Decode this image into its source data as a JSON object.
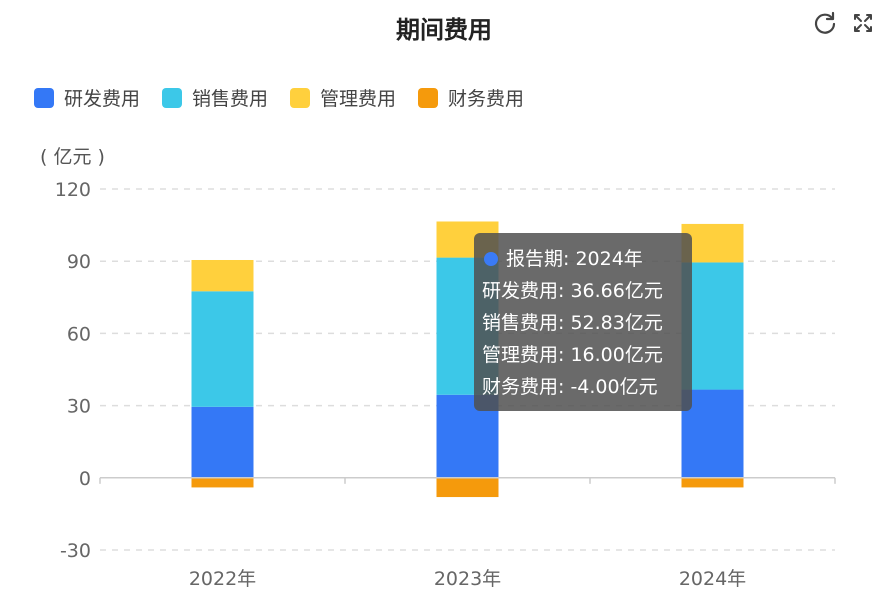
{
  "chart_data": {
    "type": "bar",
    "stacked": true,
    "title": "期间费用",
    "unit_label": "( 亿元 )",
    "categories": [
      "2022年",
      "2023年",
      "2024年"
    ],
    "yticks": [
      "120",
      "90",
      "60",
      "30",
      "0",
      "-30"
    ],
    "ylim": [
      -30,
      120
    ],
    "grid": true,
    "legend_position": "top-left",
    "series": [
      {
        "name": "研发费用",
        "color": "#3478f6",
        "values": [
          29.5,
          34.5,
          36.66
        ]
      },
      {
        "name": "销售费用",
        "color": "#3cc8e8",
        "values": [
          48.0,
          57.0,
          52.83
        ]
      },
      {
        "name": "管理费用",
        "color": "#ffd03d",
        "values": [
          13.0,
          15.0,
          16.0
        ]
      },
      {
        "name": "财务费用",
        "color": "#f59a0c",
        "values": [
          -4.0,
          -8.0,
          -4.0
        ]
      }
    ]
  },
  "tooltip": {
    "header": "报告期: 2024年",
    "lines": [
      "研发费用: 36.66亿元",
      "销售费用: 52.83亿元",
      "管理费用: 16.00亿元",
      "财务费用: -4.00亿元"
    ]
  },
  "icons": {
    "refresh": "refresh-icon",
    "fullscreen": "fullscreen-icon"
  }
}
